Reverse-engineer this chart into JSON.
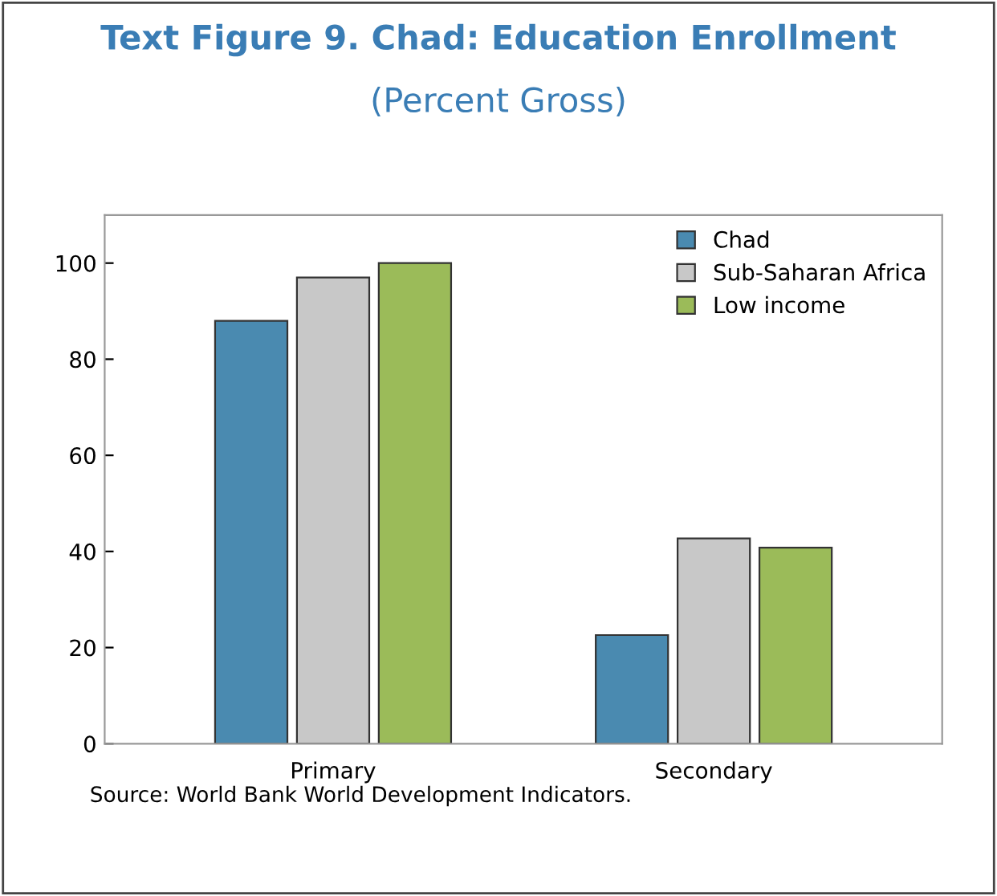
{
  "chart_data": {
    "type": "bar",
    "title": "Text Figure 9. Chad: Education Enrollment",
    "subtitle": "(Percent Gross)",
    "categories": [
      "Primary",
      "Secondary"
    ],
    "series": [
      {
        "name": "Chad",
        "color": "#4a8ab0",
        "values": [
          88,
          22.6
        ]
      },
      {
        "name": "Sub-Saharan Africa",
        "color": "#c8c8c8",
        "values": [
          97,
          42.7
        ]
      },
      {
        "name": "Low income",
        "color": "#9bbb59",
        "values": [
          100,
          40.8
        ]
      }
    ],
    "ylim": [
      0,
      110
    ],
    "yticks": [
      0,
      20,
      40,
      60,
      80,
      100
    ],
    "grid": false,
    "legend": "top right",
    "annotations": [
      "Source: World Bank World Development Indicators."
    ]
  }
}
